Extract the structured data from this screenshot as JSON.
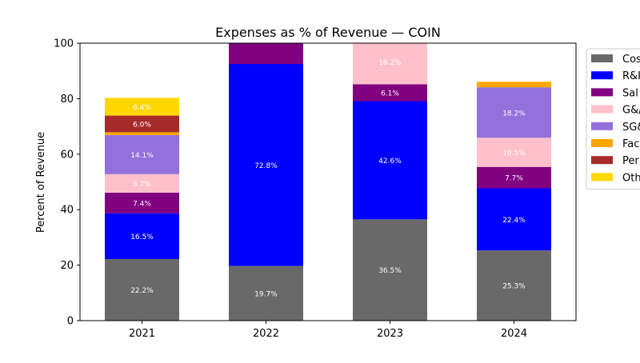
{
  "chart_data": {
    "type": "bar",
    "stacked": true,
    "title": "Expenses as % of Revenue — COIN",
    "xlabel": "",
    "ylabel": "Percent of Revenue",
    "ylim": [
      0,
      100
    ],
    "yticks": [
      0,
      20,
      40,
      60,
      80,
      100
    ],
    "categories": [
      "2021",
      "2022",
      "2023",
      "2024"
    ],
    "legend_position": "outside-right-top",
    "series": [
      {
        "name": "Cost",
        "legend_text": "Cos",
        "color": "#696969",
        "values": [
          22.2,
          19.7,
          36.5,
          25.3
        ],
        "labels": [
          "22.2%",
          "19.7%",
          "36.5%",
          "25.3%"
        ]
      },
      {
        "name": "R&D",
        "legend_text": "R&I",
        "color": "#0000ff",
        "values": [
          16.5,
          72.8,
          42.6,
          22.4
        ],
        "labels": [
          "16.5%",
          "72.8%",
          "42.6%",
          "22.4%"
        ]
      },
      {
        "name": "Sales",
        "legend_text": "Sal",
        "color": "#800080",
        "values": [
          7.4,
          8.0,
          6.1,
          7.7
        ],
        "labels": [
          "7.4%",
          "",
          "6.1%",
          "7.7%"
        ]
      },
      {
        "name": "G&A",
        "legend_text": "G&/",
        "color": "#ffc0cb",
        "values": [
          6.7,
          0,
          16.2,
          10.5
        ],
        "labels": [
          "6.7%",
          "",
          "16.2%",
          "10.5%"
        ]
      },
      {
        "name": "SG&A",
        "legend_text": "SG&",
        "color": "#9370db",
        "values": [
          14.1,
          0,
          0,
          18.2
        ],
        "labels": [
          "14.1%",
          "",
          "",
          "18.2%"
        ]
      },
      {
        "name": "Facilities",
        "legend_text": "Fac",
        "color": "#ffa500",
        "values": [
          1.0,
          0,
          0,
          2.0
        ],
        "labels": [
          "",
          "",
          "",
          ""
        ]
      },
      {
        "name": "Personnel",
        "legend_text": "Per",
        "color": "#a52a2a",
        "values": [
          6.0,
          0,
          0,
          0
        ],
        "labels": [
          "6.0%",
          "",
          "",
          ""
        ]
      },
      {
        "name": "Other",
        "legend_text": "Oth",
        "color": "#ffd700",
        "values": [
          6.4,
          0,
          0,
          0
        ],
        "labels": [
          "6.4%",
          "",
          "",
          ""
        ]
      }
    ]
  }
}
